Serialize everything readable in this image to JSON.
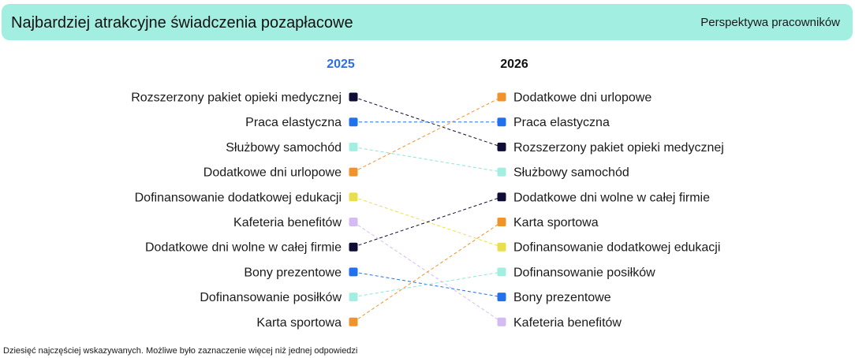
{
  "header": {
    "title": "Najbardziej atrakcyjne świadczenia pozapłacowe",
    "subtitle": "Perspektywa pracowników"
  },
  "chart_data": {
    "type": "slope",
    "title": "Najbardziej atrakcyjne świadczenia pozapłacowe",
    "subtitle": "Perspektywa pracowników",
    "columns": [
      "2025",
      "2026"
    ],
    "column_colors": [
      "#2f6fe4",
      "#111111"
    ],
    "items": [
      {
        "label": "Rozszerzony pakiet opieki medycznej",
        "rank_2025": 1,
        "rank_2026": 3,
        "color": "#0f0c36"
      },
      {
        "label": "Praca elastyczna",
        "rank_2025": 2,
        "rank_2026": 2,
        "color": "#2271ec"
      },
      {
        "label": "Służbowy samochód",
        "rank_2025": 3,
        "rank_2026": 4,
        "color": "#a2efe2"
      },
      {
        "label": "Dodatkowe dni urlopowe",
        "rank_2025": 4,
        "rank_2026": 1,
        "color": "#f0932b"
      },
      {
        "label": "Dofinansowanie dodatkowej edukacji",
        "rank_2025": 5,
        "rank_2026": 7,
        "color": "#e9df4e"
      },
      {
        "label": "Kafeteria benefitów",
        "rank_2025": 6,
        "rank_2026": 10,
        "color": "#d4bbf3"
      },
      {
        "label": "Dodatkowe dni wolne w całej firmie",
        "rank_2025": 7,
        "rank_2026": 5,
        "color": "#0f0c36"
      },
      {
        "label": "Bony prezentowe",
        "rank_2025": 8,
        "rank_2026": 9,
        "color": "#2271ec"
      },
      {
        "label": "Dofinansowanie posiłków",
        "rank_2025": 9,
        "rank_2026": 8,
        "color": "#a2efe2"
      },
      {
        "label": "Karta sportowa",
        "rank_2025": 10,
        "rank_2026": 6,
        "color": "#f0932b"
      }
    ]
  },
  "footnote": "Dziesięć najczęściej wskazywanych. Możliwe było zaznaczenie więcej niż jednej odpowiedzi"
}
